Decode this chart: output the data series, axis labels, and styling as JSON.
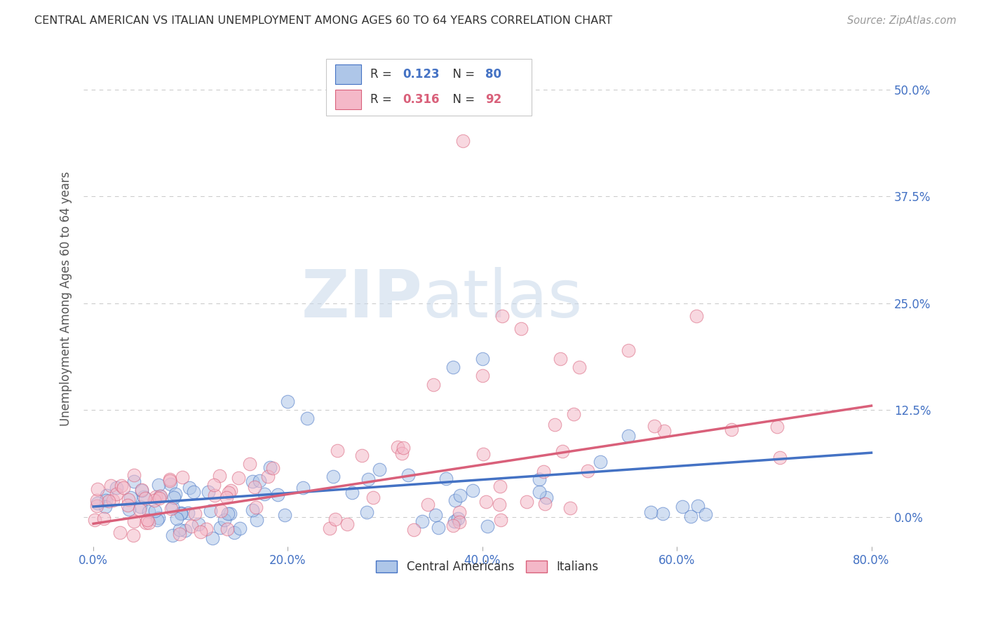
{
  "title": "CENTRAL AMERICAN VS ITALIAN UNEMPLOYMENT AMONG AGES 60 TO 64 YEARS CORRELATION CHART",
  "source": "Source: ZipAtlas.com",
  "ylabel": "Unemployment Among Ages 60 to 64 years",
  "xlabel_ticks": [
    "0.0%",
    "20.0%",
    "40.0%",
    "60.0%",
    "80.0%"
  ],
  "ytick_labels": [
    "0.0%",
    "12.5%",
    "25.0%",
    "37.5%",
    "50.0%"
  ],
  "ytick_positions": [
    0.0,
    0.125,
    0.25,
    0.375,
    0.5
  ],
  "xtick_positions": [
    0.0,
    0.2,
    0.4,
    0.6,
    0.8
  ],
  "xlim": [
    -0.01,
    0.82
  ],
  "ylim": [
    -0.035,
    0.545
  ],
  "blue_color": "#aec6e8",
  "pink_color": "#f4b8c8",
  "blue_line_color": "#4472c4",
  "pink_line_color": "#d9607a",
  "blue_R": 0.123,
  "blue_N": 80,
  "pink_R": 0.316,
  "pink_N": 92,
  "blue_line_y0": 0.012,
  "blue_line_y1": 0.075,
  "pink_line_y0": -0.008,
  "pink_line_y1": 0.13,
  "watermark_zip": "ZIP",
  "watermark_atlas": "atlas",
  "legend_label_blue": "Central Americans",
  "legend_label_pink": "Italians",
  "title_color": "#333333",
  "source_color": "#999999",
  "axis_label_color": "#555555",
  "tick_color": "#4472c4",
  "background_color": "#ffffff",
  "grid_color": "#cccccc"
}
